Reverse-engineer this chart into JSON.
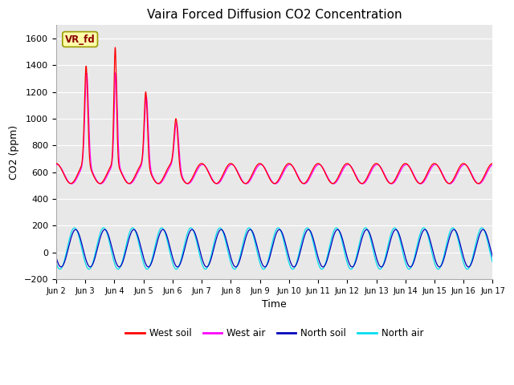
{
  "title": "Vaira Forced Diffusion CO2 Concentration",
  "xlabel": "Time",
  "ylabel": "CO2 (ppm)",
  "ylim": [
    -200,
    1700
  ],
  "yticks": [
    -200,
    0,
    200,
    400,
    600,
    800,
    1000,
    1200,
    1400,
    1600
  ],
  "colors": {
    "west_soil": "#ff0000",
    "west_air": "#ff00ff",
    "north_soil": "#0000bb",
    "north_air": "#00ddee"
  },
  "legend_label": "VR_fd",
  "legend_box_color": "#ffffaa",
  "legend_box_border": "#999900",
  "plot_bg_color": "#e8e8e8",
  "tick_labels": [
    "Jun 2",
    "Jun 3",
    "Jun 4",
    "Jun 5",
    "Jun 6",
    "Jun 7",
    "Jun 8",
    "Jun 9",
    "Jun 10",
    "Jun 11",
    "Jun 12",
    "Jun 13",
    "Jun 14",
    "Jun 15",
    "Jun 16",
    "Jun 17"
  ],
  "tick_positions": [
    1,
    2,
    3,
    4,
    5,
    6,
    7,
    8,
    9,
    10,
    11,
    12,
    13,
    14,
    15,
    16
  ],
  "figsize": [
    6.4,
    4.8
  ],
  "dpi": 100
}
